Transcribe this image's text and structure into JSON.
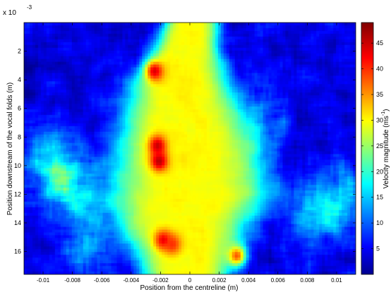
{
  "chart_data": {
    "type": "heatmap",
    "title": "",
    "xlabel": "Position from the centreline (m)",
    "ylabel": "Position downstream of the vocal folds (m)",
    "y_exponent_label": "x 10",
    "y_exponent_power": "-3",
    "colorbar_label": "Velocity magnitude (ms",
    "colorbar_label_power": "-1",
    "colorbar_label_close": ")",
    "xlim": [
      -0.0113,
      0.0113
    ],
    "ylim": [
      17.6,
      0.0
    ],
    "clim": [
      0,
      49
    ],
    "x_ticks": [
      {
        "value": -0.01,
        "label": "-0.01"
      },
      {
        "value": -0.008,
        "label": "-0.008"
      },
      {
        "value": -0.006,
        "label": "-0.006"
      },
      {
        "value": -0.004,
        "label": "-0.004"
      },
      {
        "value": -0.002,
        "label": "-0.002"
      },
      {
        "value": 0,
        "label": "0"
      },
      {
        "value": 0.002,
        "label": "0.002"
      },
      {
        "value": 0.004,
        "label": "0.004"
      },
      {
        "value": 0.006,
        "label": "0.006"
      },
      {
        "value": 0.008,
        "label": "0.008"
      },
      {
        "value": 0.01,
        "label": "0.01"
      }
    ],
    "y_ticks": [
      {
        "value": 2,
        "label": "2"
      },
      {
        "value": 4,
        "label": "4"
      },
      {
        "value": 6,
        "label": "6"
      },
      {
        "value": 8,
        "label": "8"
      },
      {
        "value": 10,
        "label": "10"
      },
      {
        "value": 12,
        "label": "12"
      },
      {
        "value": 14,
        "label": "14"
      },
      {
        "value": 16,
        "label": "16"
      }
    ],
    "colorbar_ticks": [
      {
        "value": 5,
        "label": "5"
      },
      {
        "value": 10,
        "label": "10"
      },
      {
        "value": 15,
        "label": "15"
      },
      {
        "value": 20,
        "label": "20"
      },
      {
        "value": 25,
        "label": "25"
      },
      {
        "value": 30,
        "label": "30"
      },
      {
        "value": 35,
        "label": "35"
      },
      {
        "value": 40,
        "label": "40"
      },
      {
        "value": 45,
        "label": "45"
      }
    ],
    "colormap": "jet",
    "colormap_stops": [
      "#00008f",
      "#0000ff",
      "#00ffff",
      "#ffff00",
      "#ff0000",
      "#800000"
    ],
    "jet_core": {
      "description_values": {
        "jet_speed_centre_ms": 30,
        "background_speed_ms": 4
      },
      "half_width_profile": [
        {
          "y": 0,
          "x_left": -0.0021,
          "x_right": 0.0023
        },
        {
          "y": 2,
          "x_left": -0.0031,
          "x_right": 0.0025
        },
        {
          "y": 4,
          "x_left": -0.0045,
          "x_right": 0.0033
        },
        {
          "y": 6,
          "x_left": -0.0052,
          "x_right": 0.0042
        },
        {
          "y": 8,
          "x_left": -0.0058,
          "x_right": 0.0052
        },
        {
          "y": 10,
          "x_left": -0.0062,
          "x_right": 0.006
        },
        {
          "y": 12,
          "x_left": -0.0066,
          "x_right": 0.0066
        },
        {
          "y": 14,
          "x_left": -0.006,
          "x_right": 0.005
        },
        {
          "y": 16,
          "x_left": -0.0045,
          "x_right": 0.004
        },
        {
          "y": 17.6,
          "x_left": -0.0038,
          "x_right": 0.0034
        }
      ]
    },
    "hot_spots": [
      {
        "x": -0.0024,
        "y": 3.4,
        "value": 44
      },
      {
        "x": -0.0022,
        "y": 8.6,
        "value": 45
      },
      {
        "x": -0.0021,
        "y": 9.7,
        "value": 46
      },
      {
        "x": -0.0018,
        "y": 15.2,
        "value": 43
      },
      {
        "x": -0.0012,
        "y": 15.5,
        "value": 40
      },
      {
        "x": 0.0032,
        "y": 16.3,
        "value": 38
      }
    ],
    "side_regions": [
      {
        "x": -0.0095,
        "y": 9.5,
        "value": 14
      },
      {
        "x": -0.008,
        "y": 11.5,
        "value": 16
      },
      {
        "x": 0.0085,
        "y": 13.5,
        "value": 13
      },
      {
        "x": 0.0105,
        "y": 12.0,
        "value": 12
      },
      {
        "x": 0.005,
        "y": 7.0,
        "value": 10
      },
      {
        "x": -0.007,
        "y": 15.5,
        "value": 12
      }
    ]
  }
}
